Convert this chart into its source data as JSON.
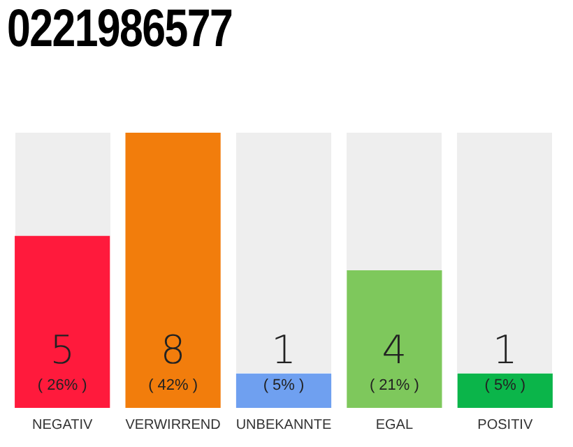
{
  "chart_data": {
    "type": "bar",
    "title": "0221986577",
    "categories": [
      "NEGATIV",
      "VERWIRREND",
      "UNBEKANNTE",
      "EGAL",
      "POSITIV"
    ],
    "values": [
      5,
      8,
      1,
      4,
      1
    ],
    "colors": [
      "#ff1a3c",
      "#f27d0c",
      "#6fa0f0",
      "#7ec85c",
      "#0bb54a"
    ],
    "data_labels": true,
    "annotations": [
      "( 26% )",
      "( 42% )",
      "( 5% )",
      "( 21% )",
      "( 5% )"
    ],
    "grid": false,
    "legend": false
  }
}
